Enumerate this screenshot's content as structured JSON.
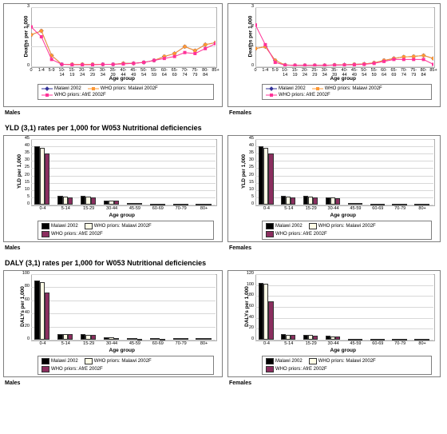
{
  "titles": {
    "yld": "YLD (3,1) rates per 1,000 for W053 Nutritional deficiencies",
    "daly": "DALY (3,1) rates per 1,000 for W053 Nutritional deficiencies"
  },
  "genders": {
    "male": "Males",
    "female": "Females"
  },
  "axis": {
    "age": "Age group",
    "deaths": "Deaths per 1,000",
    "yld": "YLD per 1,000",
    "daly": "DALYs per 1,000"
  },
  "legend": {
    "malawi": "Malawi 2002",
    "who_malawi": "WHO priors: Malawi 2002F",
    "who_afre": "WHO priors: AfrE 2002F"
  },
  "colors": {
    "s1": "#333399",
    "s2": "#ff9933",
    "s3": "#ff3399",
    "bar1": "#000000",
    "bar2": "#fffde6",
    "bar3": "#8b2e5f",
    "grid": "#d8d8d8",
    "border": "#7f7f7f"
  },
  "line_charts": {
    "xticks": [
      "0",
      "1-4",
      "5-9",
      "10-14",
      "15-19",
      "20-24",
      "25-29",
      "30-34",
      "35-39",
      "40-44",
      "45-49",
      "50-54",
      "55-59",
      "60-64",
      "65-69",
      "70-74",
      "75-79",
      "80-84",
      "85+"
    ],
    "ylim": [
      0,
      3
    ],
    "yticks": [
      0,
      1,
      2,
      3
    ],
    "male": {
      "s1": [
        1.6,
        1.8,
        0.55,
        0.1,
        0.1,
        0.1,
        0.1,
        0.1,
        0.1,
        0.15,
        0.15,
        0.2,
        0.3,
        0.5,
        0.65,
        1.0,
        0.8,
        1.1,
        1.2
      ],
      "s2": [
        1.6,
        1.8,
        0.55,
        0.1,
        0.1,
        0.1,
        0.1,
        0.1,
        0.1,
        0.15,
        0.15,
        0.2,
        0.3,
        0.5,
        0.65,
        1.0,
        0.8,
        1.1,
        1.2
      ],
      "s3": [
        2.0,
        1.5,
        0.35,
        0.1,
        0.08,
        0.08,
        0.08,
        0.1,
        0.1,
        0.12,
        0.15,
        0.2,
        0.3,
        0.4,
        0.5,
        0.7,
        0.65,
        0.9,
        1.15
      ]
    },
    "female": {
      "s1": [
        0.9,
        1.0,
        0.3,
        0.07,
        0.05,
        0.05,
        0.05,
        0.05,
        0.07,
        0.08,
        0.1,
        0.12,
        0.18,
        0.3,
        0.4,
        0.48,
        0.5,
        0.55,
        0.4
      ],
      "s2": [
        0.9,
        1.0,
        0.3,
        0.07,
        0.05,
        0.05,
        0.05,
        0.05,
        0.07,
        0.08,
        0.1,
        0.12,
        0.18,
        0.3,
        0.4,
        0.48,
        0.5,
        0.55,
        0.4
      ],
      "s3": [
        2.1,
        1.1,
        0.2,
        0.06,
        0.05,
        0.05,
        0.05,
        0.05,
        0.06,
        0.07,
        0.08,
        0.1,
        0.15,
        0.25,
        0.35,
        0.35,
        0.35,
        0.35,
        0.1
      ]
    }
  },
  "bar_charts": {
    "xticks": [
      "0-4",
      "5-14",
      "15-29",
      "30-44",
      "45-59",
      "60-69",
      "70-79",
      "80+"
    ],
    "yld": {
      "ylim": [
        0,
        45
      ],
      "yticks": [
        0,
        5,
        10,
        15,
        20,
        25,
        30,
        35,
        40,
        45
      ],
      "male": {
        "s1": [
          40,
          6,
          6,
          3,
          1,
          0.5,
          0.5,
          0.5
        ],
        "s2": [
          39,
          5.5,
          5.5,
          2.8,
          1,
          0.5,
          0.5,
          0.5
        ],
        "s3": [
          35,
          5,
          5,
          2.5,
          1,
          0.5,
          0.5,
          0.5
        ]
      },
      "female": {
        "s1": [
          40,
          6,
          6,
          5,
          1,
          0.5,
          0.5,
          0.5
        ],
        "s2": [
          39,
          5.5,
          5.5,
          5,
          1,
          0.5,
          0.5,
          0.5
        ],
        "s3": [
          35,
          5,
          5,
          4.5,
          1,
          0.5,
          0.5,
          0.5
        ]
      }
    },
    "daly": {
      "male": {
        "ylim": [
          0,
          100
        ],
        "yticks": [
          0,
          20,
          40,
          60,
          80,
          100
        ],
        "s1": [
          90,
          9,
          8,
          4,
          2,
          2,
          3,
          3
        ],
        "s2": [
          88,
          8.5,
          7.5,
          3.5,
          2,
          2,
          3,
          3
        ],
        "s3": [
          72,
          8,
          7,
          3,
          1.5,
          1.5,
          2,
          2
        ]
      },
      "female": {
        "ylim": [
          0,
          120
        ],
        "yticks": [
          0,
          20,
          40,
          60,
          80,
          100,
          120
        ],
        "s1": [
          104,
          10,
          9,
          7,
          2,
          2,
          2,
          1
        ],
        "s2": [
          103,
          9.5,
          8.5,
          6.5,
          2,
          2,
          2,
          1
        ],
        "s3": [
          70,
          9,
          8,
          6,
          1.5,
          1.5,
          1.5,
          1
        ]
      }
    }
  }
}
